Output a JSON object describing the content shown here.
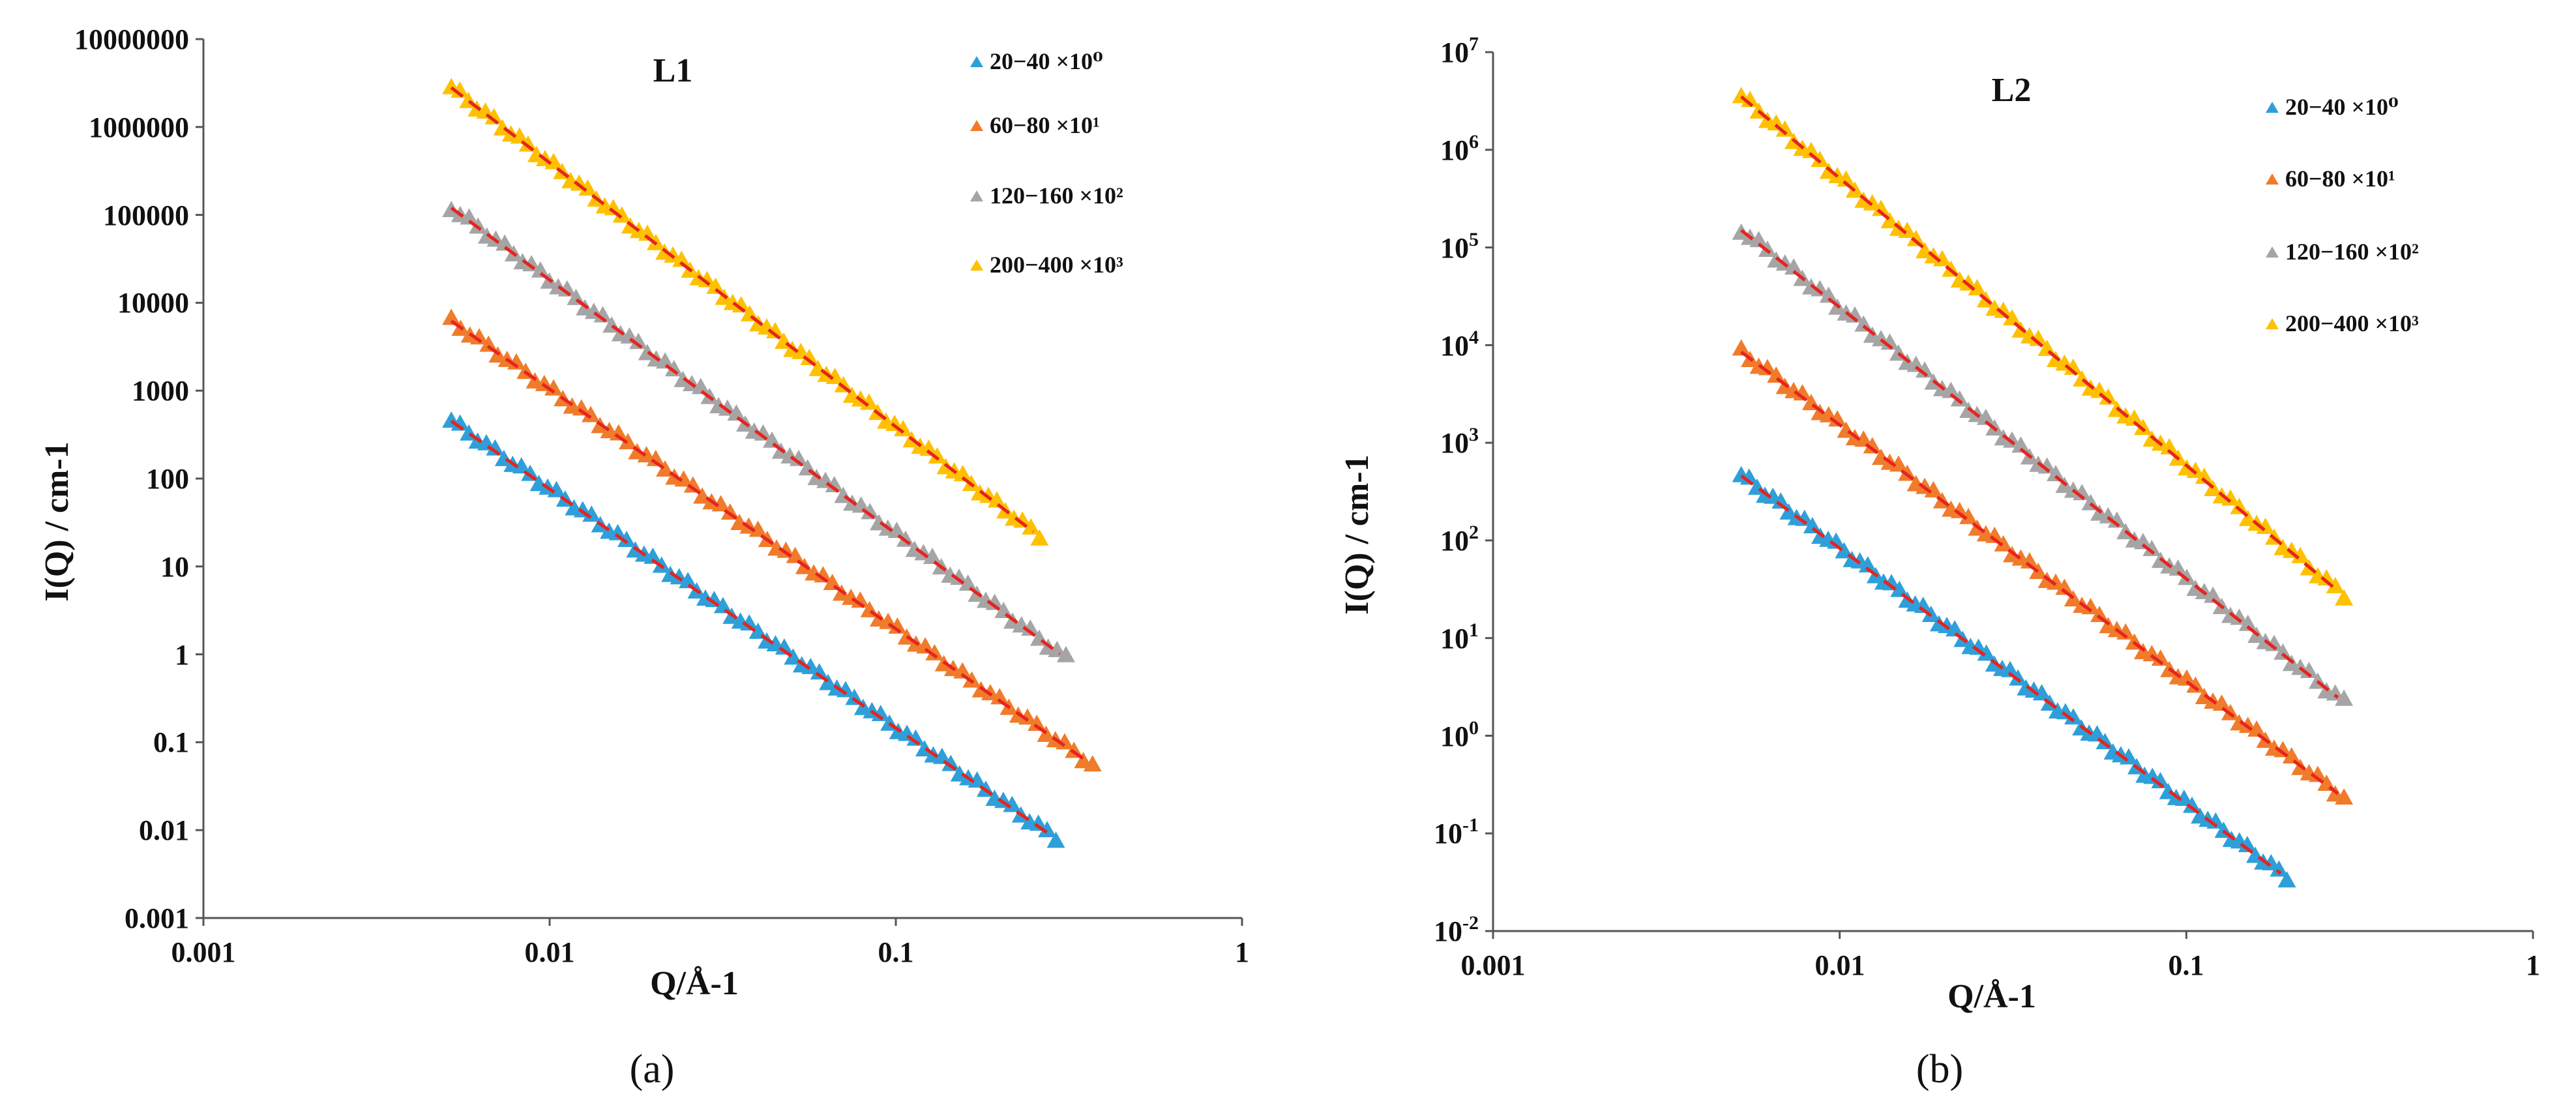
{
  "chart_data": [
    {
      "type": "scatter",
      "title": "L1",
      "panel_label": "(a)",
      "xlabel": "Q/Å-1",
      "ylabel": "I(Q) / cm-1",
      "xscale": "log",
      "yscale": "log",
      "xlim": [
        0.001,
        1
      ],
      "ylim": [
        0.001,
        10000000
      ],
      "x_tick_labels": [
        "0.001",
        "0.01",
        "0.1",
        "1"
      ],
      "y_tick_labels": [
        "0.001",
        "0.01",
        "0.1",
        "1",
        "10",
        "100",
        "1000",
        "10000",
        "100000",
        "1000000",
        "10000000"
      ],
      "y_tick_style": "plain",
      "legend_position": "top-right",
      "fit_line_color": "#e8231f",
      "series": [
        {
          "name": "20−40 ×10⁰",
          "color": "#2e9fd9",
          "q_range": [
            0.0052,
            0.29
          ],
          "i_start": 450,
          "i_end": 0.008
        },
        {
          "name": "60−80 ×10¹",
          "color": "#f07b2a",
          "q_range": [
            0.0052,
            0.37
          ],
          "i_start": 6200,
          "i_end": 0.055
        },
        {
          "name": "120−160 ×10²",
          "color": "#a5a5a5",
          "q_range": [
            0.0052,
            0.31
          ],
          "i_start": 120000,
          "i_end": 0.9
        },
        {
          "name": "200−400 ×10³",
          "color": "#ffc000",
          "q_range": [
            0.0052,
            0.26
          ],
          "i_start": 2800000,
          "i_end": 22
        }
      ]
    },
    {
      "type": "scatter",
      "title": "L2",
      "panel_label": "(b)",
      "xlabel": "Q/Å-1",
      "ylabel": "I(Q) / cm-1",
      "xscale": "log",
      "yscale": "log",
      "xlim": [
        0.001,
        1
      ],
      "ylim": [
        0.01,
        10000000
      ],
      "x_tick_labels": [
        "0.001",
        "0.01",
        "0.1",
        "1"
      ],
      "y_tick_exponents": [
        "-2",
        "-1",
        "0",
        "1",
        "2",
        "3",
        "4",
        "5",
        "6",
        "7"
      ],
      "y_tick_base": "10",
      "y_tick_style": "power",
      "legend_position": "top-right",
      "fit_line_color": "#e8231f",
      "series": [
        {
          "name": "20−40 ×10⁰",
          "color": "#2e9fd9",
          "q_range": [
            0.0052,
            0.195
          ],
          "i_start": 460,
          "i_end": 0.035
        },
        {
          "name": "60−80 ×10¹",
          "color": "#f07b2a",
          "q_range": [
            0.0052,
            0.285
          ],
          "i_start": 8500,
          "i_end": 0.23
        },
        {
          "name": "120−160 ×10²",
          "color": "#a5a5a5",
          "q_range": [
            0.0052,
            0.285
          ],
          "i_start": 150000,
          "i_end": 2.2
        },
        {
          "name": "200−400 ×10³",
          "color": "#ffc000",
          "q_range": [
            0.0052,
            0.285
          ],
          "i_start": 3500000,
          "i_end": 27
        }
      ]
    }
  ]
}
